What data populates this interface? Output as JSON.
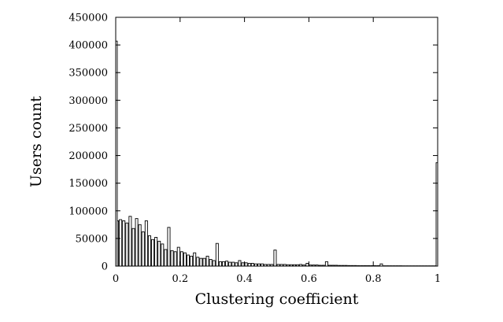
{
  "chart_data": {
    "type": "bar",
    "title": "",
    "xlabel": "Clustering coefficient",
    "ylabel": "Users count",
    "xlim": [
      0,
      1
    ],
    "ylim": [
      0,
      450000
    ],
    "x_ticks": [
      "0",
      "0.2",
      "0.4",
      "0.6",
      "0.8",
      "1"
    ],
    "y_ticks": [
      "0",
      "50000",
      "100000",
      "150000",
      "200000",
      "250000",
      "300000",
      "350000",
      "400000",
      "450000"
    ],
    "grid": false,
    "bar_fill": "#ffffff",
    "bar_stroke": "#000000",
    "bin_width": 0.01,
    "x": [
      0.005,
      0.015,
      0.025,
      0.035,
      0.045,
      0.055,
      0.065,
      0.075,
      0.085,
      0.095,
      0.105,
      0.115,
      0.125,
      0.135,
      0.145,
      0.155,
      0.165,
      0.175,
      0.185,
      0.195,
      0.205,
      0.215,
      0.225,
      0.235,
      0.245,
      0.255,
      0.265,
      0.275,
      0.285,
      0.295,
      0.305,
      0.315,
      0.325,
      0.335,
      0.345,
      0.355,
      0.365,
      0.375,
      0.385,
      0.395,
      0.405,
      0.415,
      0.425,
      0.435,
      0.445,
      0.455,
      0.465,
      0.475,
      0.485,
      0.495,
      0.505,
      0.515,
      0.525,
      0.535,
      0.545,
      0.555,
      0.565,
      0.575,
      0.585,
      0.595,
      0.605,
      0.615,
      0.625,
      0.635,
      0.645,
      0.655,
      0.665,
      0.675,
      0.685,
      0.695,
      0.705,
      0.715,
      0.725,
      0.735,
      0.745,
      0.755,
      0.765,
      0.775,
      0.785,
      0.795,
      0.805,
      0.815,
      0.825,
      0.835,
      0.845,
      0.855,
      0.865,
      0.875,
      0.885,
      0.895,
      0.905,
      0.915,
      0.925,
      0.935,
      0.945,
      0.955,
      0.965,
      0.975,
      0.985,
      0.995
    ],
    "values": [
      82000,
      84000,
      82000,
      78000,
      90000,
      68000,
      86000,
      75000,
      62000,
      82000,
      55000,
      48000,
      52000,
      45000,
      40000,
      30000,
      70000,
      28000,
      26000,
      34000,
      26000,
      24000,
      20000,
      18000,
      24000,
      16000,
      14000,
      14000,
      18000,
      12000,
      10000,
      41000,
      8000,
      8000,
      9000,
      7000,
      7000,
      6000,
      10000,
      6000,
      6000,
      5000,
      5000,
      4000,
      4000,
      4000,
      3000,
      3000,
      3000,
      29000,
      3000,
      3000,
      3000,
      2500,
      2500,
      2500,
      2500,
      3000,
      2000,
      5000,
      2000,
      2000,
      2000,
      1500,
      1500,
      8000,
      1500,
      1500,
      1500,
      1200,
      1200,
      1200,
      1000,
      1000,
      1000,
      800,
      800,
      800,
      800,
      800,
      800,
      800,
      4000,
      600,
      600,
      600,
      600,
      600,
      600,
      500,
      500,
      500,
      500,
      500,
      500,
      500,
      500,
      500,
      500,
      500
    ],
    "extra_bars": [
      {
        "x": 0.0,
        "value": 407000
      },
      {
        "x": 1.0,
        "value": 187000
      }
    ]
  }
}
